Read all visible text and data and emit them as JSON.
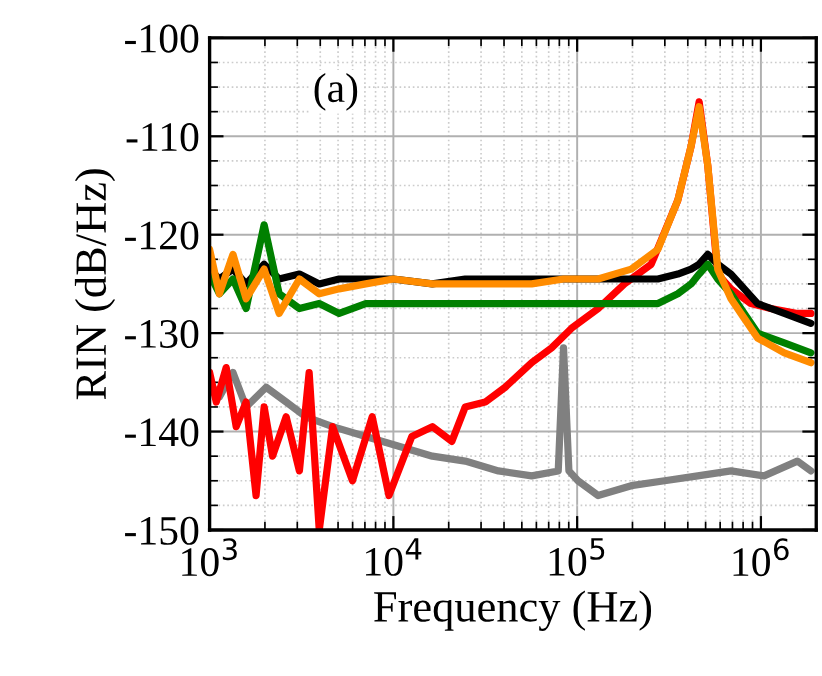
{
  "chart_data": {
    "type": "line",
    "xlabel": "Frequency (Hz)",
    "ylabel": "RIN (dB/Hz)",
    "log": "x",
    "grid": true,
    "legend": false,
    "marker": "none",
    "line_style": "solid",
    "annotations": [
      "(a)"
    ],
    "xlim": [
      1000,
      2000000
    ],
    "xticks": [
      {
        "value": 1000,
        "label": "10$^{3}$"
      },
      {
        "value": 10000,
        "label": "10$^{4}$"
      },
      {
        "value": 100000,
        "label": "10$^{5}$"
      },
      {
        "value": 1000000,
        "label": "10$^{6}$"
      }
    ],
    "ylim": [
      -150,
      -100
    ],
    "yticks": [
      -150,
      -140,
      -130,
      -120,
      -110,
      -100
    ],
    "x": [
      1000,
      1130,
      1340,
      1580,
      1980,
      2390,
      3080,
      3950,
      5070,
      7070,
      10000,
      16300,
      24600,
      37300,
      56600,
      84300,
      130000,
      197000,
      275000,
      353000,
      417000,
      461000,
      514000,
      582000,
      687000,
      812000,
      959000,
      1340000,
      1870000
    ],
    "series": [
      {
        "color": "#808080",
        "x": [
          1000,
          1130,
          1340,
          1580,
          2030,
          2610,
          3340,
          4670,
          7070,
          10700,
          16300,
          24600,
          37300,
          56600,
          78900,
          84300,
          90200,
          101000,
          130000,
          197000,
          299000,
          453000,
          687000,
          1040000,
          1580000,
          1870000
        ],
        "values": [
          -135,
          -136.5,
          -134,
          -137.5,
          -135.5,
          -137,
          -138.5,
          -139.5,
          -140.5,
          -141.5,
          -142.5,
          -143,
          -144,
          -144.5,
          -144,
          -131.5,
          -144,
          -145,
          -146.5,
          -145.5,
          -145,
          -144.5,
          -144,
          -144.5,
          -143,
          -144
        ]
      },
      {
        "color": "#ff0000",
        "x": [
          1000,
          1087,
          1231,
          1395,
          1580,
          1790,
          1980,
          2200,
          2610,
          3080,
          3480,
          3950,
          4670,
          5990,
          7670,
          9460,
          12600,
          16300,
          20800,
          24600,
          31600,
          40600,
          56600,
          72600,
          93300,
          130000,
          181000,
          253000,
          353000,
          417000,
          461000,
          514000,
          582000,
          687000,
          881000,
          1130000,
          1580000,
          1870000
        ],
        "values": [
          -134,
          -137,
          -133.5,
          -139.5,
          -137,
          -146.5,
          -137.5,
          -142.5,
          -138.5,
          -144,
          -134,
          -150,
          -139.5,
          -145,
          -138.5,
          -146.5,
          -140.5,
          -139.5,
          -141,
          -137.5,
          -137,
          -135.5,
          -133,
          -131.5,
          -129.5,
          -127.5,
          -125,
          -123,
          -116.5,
          -111,
          -106.5,
          -113,
          -124,
          -125.5,
          -127,
          -127.5,
          -128,
          -128
        ]
      },
      {
        "color": "#000000",
        "values": [
          -123.5,
          -124.5,
          -123.5,
          -125,
          -123,
          -124.5,
          -124,
          -125,
          -124.5,
          -124.5,
          -124.5,
          -125,
          -124.5,
          -124.5,
          -124.5,
          -124.5,
          -124.5,
          -124.5,
          -124.5,
          -124,
          -123.5,
          -123,
          -122,
          -123,
          -124,
          -125.5,
          -127,
          -128,
          -129
        ]
      },
      {
        "color": "#008000",
        "values": [
          -124,
          -126,
          -124.5,
          -127.5,
          -119,
          -126,
          -127.5,
          -127,
          -128,
          -127,
          -127,
          -127,
          -127,
          -127,
          -127,
          -127,
          -127,
          -127,
          -127,
          -126,
          -125,
          -124,
          -123,
          -124.5,
          -126,
          -128,
          -130,
          -131,
          -132
        ]
      },
      {
        "color": "#ff8c00",
        "values": [
          -121.5,
          -126,
          -122,
          -126.5,
          -123.5,
          -128,
          -124.5,
          -126,
          -125.5,
          -125,
          -124.5,
          -125,
          -125,
          -125,
          -125,
          -124.5,
          -124.5,
          -123.5,
          -121.5,
          -116.5,
          -111,
          -107,
          -113,
          -123.5,
          -126.5,
          -128.5,
          -130.5,
          -132,
          -133
        ]
      }
    ]
  }
}
